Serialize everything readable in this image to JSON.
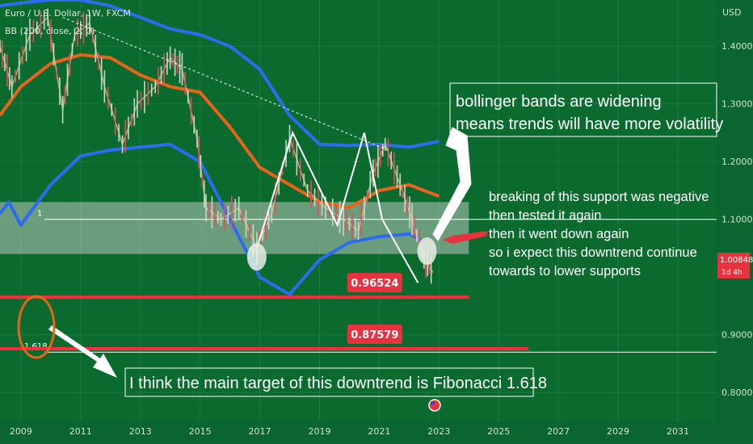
{
  "header": {
    "symbol_line": "Euro / U.S. Dollar, 1W, FXCM",
    "indicator_line": "BB (200, close, 2, 0)"
  },
  "colors": {
    "background": "#0b6b2f",
    "upper_band": "#2b6cf0",
    "basis": "#e8641c",
    "support_zone": "#b9c7bb",
    "red_line": "#ff2a3c",
    "label_red": "#e8323f",
    "arrow": "#ffffff",
    "fib_circle": "#e8641c"
  },
  "chart_data": {
    "type": "line",
    "title": "",
    "currency": "USD",
    "x_axis_years": [
      "2009",
      "2011",
      "2013",
      "2015",
      "2017",
      "2019",
      "2021",
      "2023",
      "2025",
      "2027",
      "2029",
      "2031"
    ],
    "y_ticks": [
      "1.40000",
      "1.30000",
      "1.20000",
      "1.10000",
      "0.90000",
      "0.80000"
    ],
    "ylim": [
      0.75,
      1.48
    ],
    "xlim": [
      2008.3,
      2032.3
    ],
    "price_label": "1.00848",
    "price_label_sub": "1d 4h",
    "price_value": 1.00848,
    "support_zone": {
      "from": 1.04,
      "to": 1.13,
      "x_from": 2008.3,
      "x_to": 2024.0
    },
    "horizontal_lines": [
      {
        "name": "Fib 1",
        "y": 1.1,
        "color": "#ffffff",
        "label": "1",
        "x_from": 2008.3,
        "x_to": 2032.3
      },
      {
        "name": "Fib 1.618",
        "y": 0.87,
        "color": "#ffffff",
        "label": "1.618",
        "x_from": 2008.3,
        "x_to": 2032.3
      }
    ],
    "support_lines": [
      {
        "y": 0.96524,
        "label": "0.96524",
        "x_from": 2008.3,
        "x_to": 2024.0,
        "label_x": 2020.2
      },
      {
        "y": 0.87579,
        "label": "0.87579",
        "x_from": 2008.3,
        "x_to": 2026.0,
        "label_x": 2020.2
      }
    ],
    "upper_band": {
      "x": [
        2008.3,
        2009,
        2010,
        2011,
        2012,
        2013,
        2014,
        2015,
        2016,
        2017,
        2018,
        2019,
        2020,
        2021,
        2022,
        2023
      ],
      "y": [
        1.47,
        1.475,
        1.48,
        1.48,
        1.47,
        1.45,
        1.43,
        1.42,
        1.4,
        1.36,
        1.28,
        1.23,
        1.228,
        1.23,
        1.225,
        1.235
      ]
    },
    "basis": {
      "x": [
        2008.3,
        2009,
        2010,
        2011,
        2012,
        2013,
        2014,
        2015,
        2016,
        2017,
        2018,
        2019,
        2020,
        2021,
        2022,
        2023
      ],
      "y": [
        1.28,
        1.33,
        1.37,
        1.385,
        1.38,
        1.35,
        1.33,
        1.32,
        1.26,
        1.19,
        1.16,
        1.13,
        1.12,
        1.15,
        1.16,
        1.14
      ]
    },
    "lower_band": {
      "x": [
        2008.3,
        2008.6,
        2009,
        2010,
        2011,
        2012,
        2013,
        2014,
        2015,
        2016,
        2017,
        2018,
        2019,
        2020,
        2021,
        2022,
        2022.5
      ],
      "y": [
        1.11,
        1.13,
        1.09,
        1.16,
        1.21,
        1.22,
        1.225,
        1.23,
        1.2,
        1.1,
        1.0,
        0.97,
        1.03,
        1.06,
        1.07,
        1.075,
        1.06
      ]
    },
    "price": {
      "x": [
        2008.3,
        2008.7,
        2009.3,
        2009.9,
        2010.4,
        2010.8,
        2011.3,
        2011.8,
        2012.4,
        2012.9,
        2013.5,
        2014.0,
        2014.4,
        2014.9,
        2015.2,
        2015.7,
        2016.3,
        2016.9,
        2017.4,
        2018.0,
        2018.6,
        2019.2,
        2019.8,
        2020.3,
        2020.8,
        2021.2,
        2021.7,
        2022.1,
        2022.5,
        2022.8
      ],
      "y": [
        1.4,
        1.33,
        1.42,
        1.45,
        1.29,
        1.42,
        1.44,
        1.33,
        1.23,
        1.3,
        1.33,
        1.38,
        1.36,
        1.24,
        1.12,
        1.1,
        1.12,
        1.05,
        1.11,
        1.24,
        1.15,
        1.12,
        1.1,
        1.08,
        1.18,
        1.23,
        1.16,
        1.1,
        1.03,
        1.008
      ]
    },
    "zigzag": {
      "x": [
        2016.9,
        2018.1,
        2019.6,
        2020.5,
        2021.1,
        2022.3
      ],
      "y": [
        1.05,
        1.25,
        1.09,
        1.25,
        1.1,
        0.99
      ]
    },
    "trendline": {
      "x": [
        2010.4,
        2021.3
      ],
      "y": [
        1.45,
        1.22
      ]
    },
    "circles": [
      {
        "x": 2016.9,
        "y": 1.035
      },
      {
        "x": 2022.6,
        "y": 1.045
      }
    ]
  },
  "annotations": {
    "bb_text": [
      "bollinger bands are widening",
      "means trends will have more volatility"
    ],
    "support_text": [
      "breaking of this support was negative",
      "then tested it again",
      "then it went down again",
      "so i expect this downtrend continue",
      "towards to lower supports"
    ],
    "fib_text": "I think the main target of this downtrend is Fibonacci 1.618"
  }
}
